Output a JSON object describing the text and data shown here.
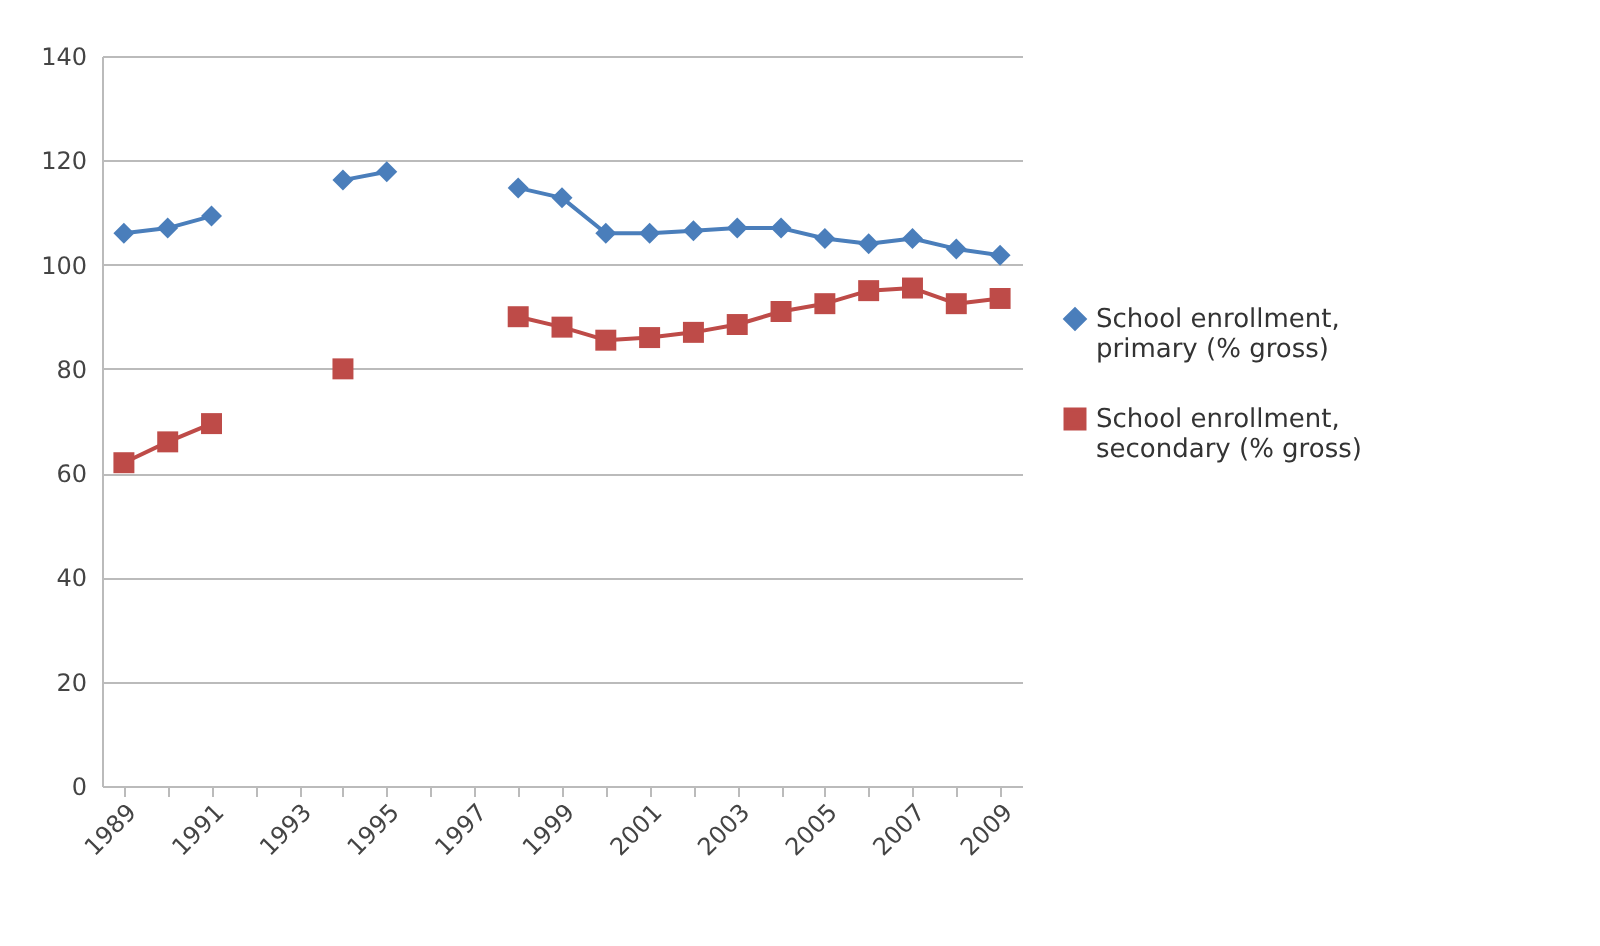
{
  "chart_data": {
    "type": "line",
    "categories": [
      "1989",
      null,
      "1991",
      null,
      "1993",
      null,
      "1995",
      null,
      "1997",
      null,
      "1999",
      null,
      "2001",
      null,
      "2003",
      null,
      "2005",
      null,
      "2007",
      null,
      "2009"
    ],
    "series": [
      {
        "name": "School enrollment, primary (% gross)",
        "color": "#4a7ebb",
        "marker": "diamond",
        "values": [
          106,
          107,
          109.3,
          null,
          null,
          116.2,
          117.8,
          null,
          null,
          114.7,
          112.8,
          106,
          106,
          106.5,
          107,
          107,
          105,
          104,
          105,
          103,
          101.8
        ]
      },
      {
        "name": "School enrollment, secondary (% gross)",
        "color": "#be4b48",
        "marker": "square",
        "values": [
          62,
          66,
          69.5,
          null,
          null,
          80,
          null,
          null,
          null,
          90,
          88,
          85.5,
          86,
          87,
          88.5,
          91,
          92.5,
          95,
          95.5,
          92.5,
          93.5
        ]
      }
    ],
    "ylim": [
      0,
      140
    ],
    "yticks": [
      0,
      20,
      40,
      60,
      80,
      100,
      120,
      140
    ],
    "grid": "y",
    "legend": "right"
  }
}
